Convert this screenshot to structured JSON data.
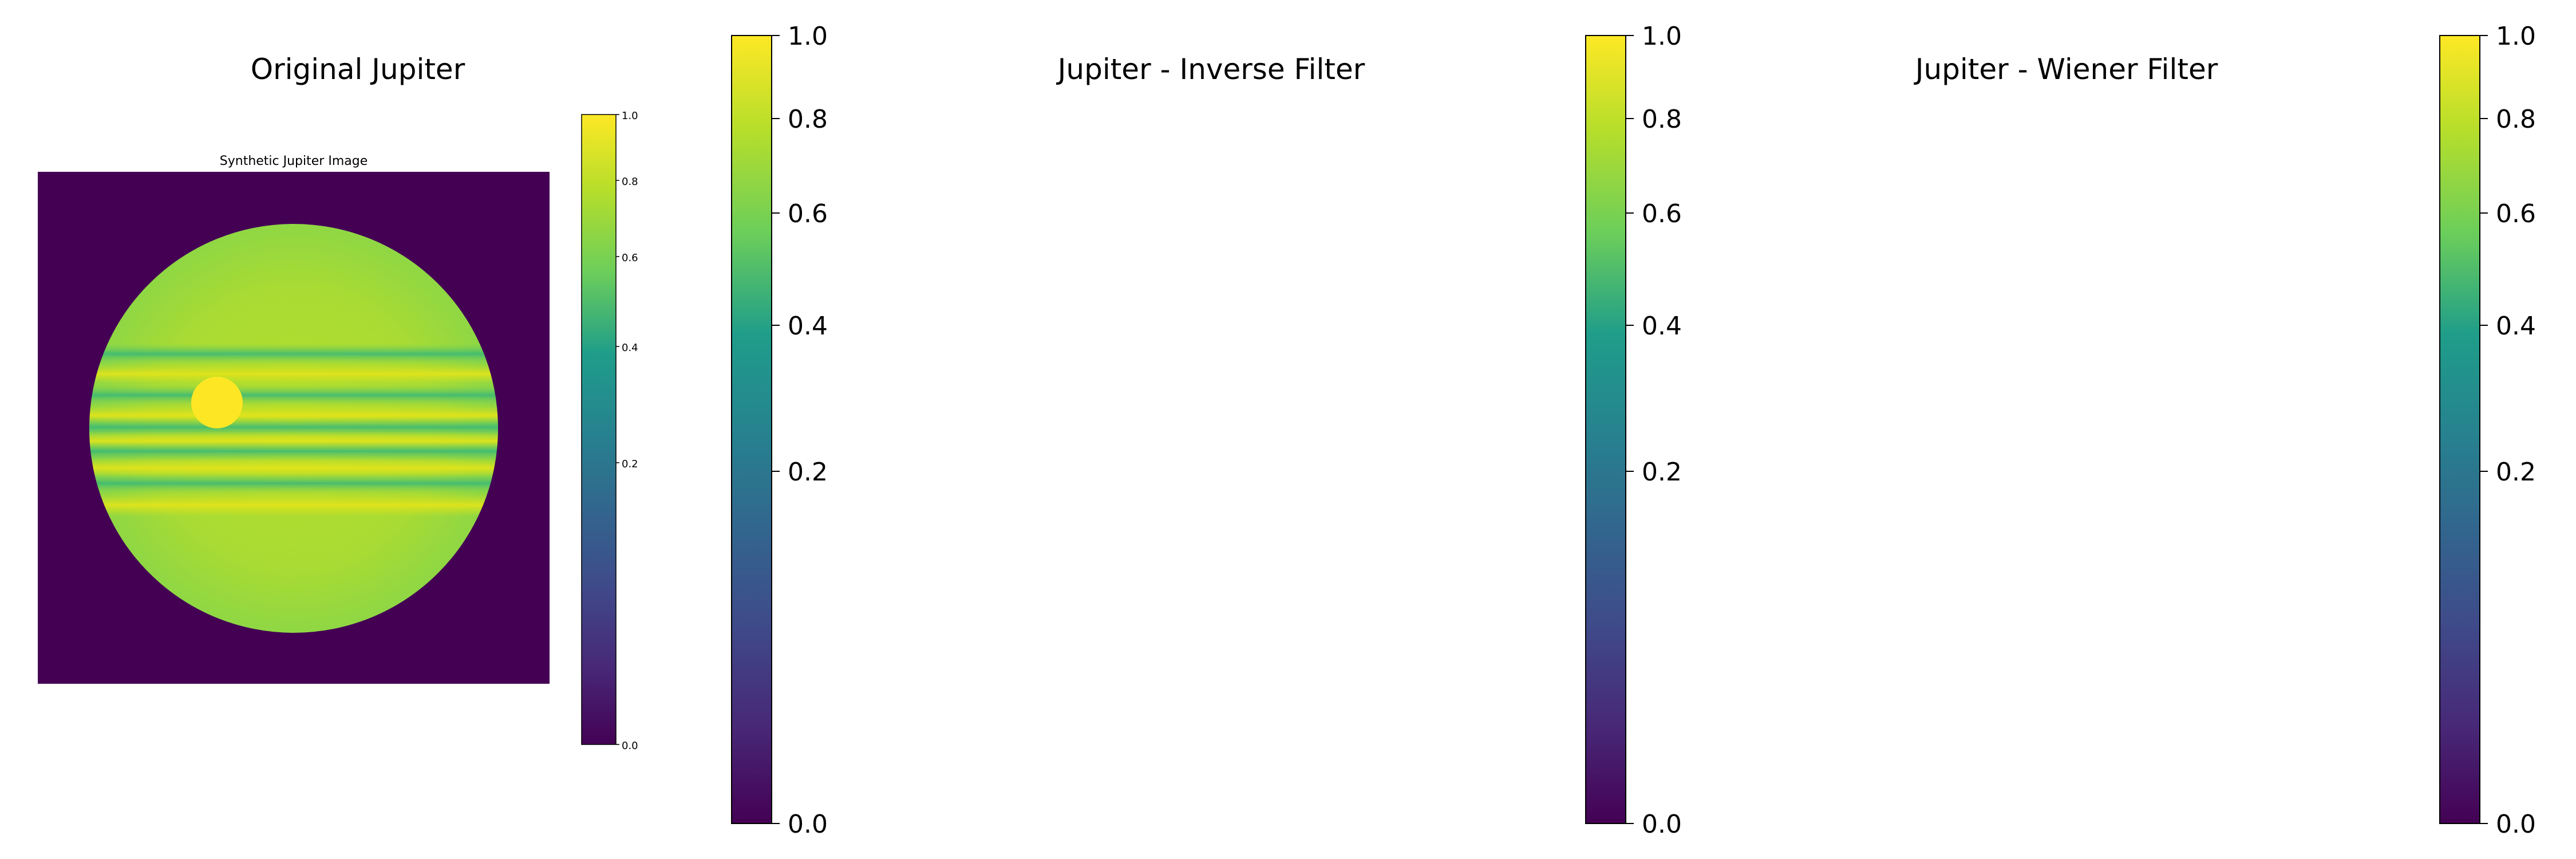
{
  "panels": [
    {
      "title": "Original Jupiter"
    },
    {
      "title": "Jupiter - Inverse Filter"
    },
    {
      "title": "Jupiter - Wiener Filter"
    }
  ],
  "inset": {
    "title": "Synthetic Jupiter Image",
    "colorbar_ticks": [
      "0.0",
      "0.2",
      "0.4",
      "0.6",
      "0.8",
      "1.0"
    ]
  },
  "colormap": {
    "name": "viridis",
    "stops": [
      "#440154",
      "#482777",
      "#3f4a8a",
      "#31678e",
      "#26838f",
      "#1f9d8a",
      "#6cce5a",
      "#b6de2b",
      "#fee825"
    ]
  },
  "chart_data": [
    {
      "type": "heatmap",
      "title": "Original Jupiter",
      "image": {
        "title": "Synthetic Jupiter Image",
        "background_value": 0.0,
        "disk_base_value": 0.78,
        "band_values": [
          0.62,
          0.9,
          0.62,
          0.9,
          0.62,
          0.9,
          0.62
        ],
        "spot_value": 1.0
      },
      "colorbar": {
        "ticks": [
          "0.0",
          "0.2",
          "0.4",
          "0.6",
          "0.8",
          "1.0"
        ],
        "range": [
          0.0,
          1.0
        ],
        "scale": "log-like (tick 0.2 at ~63%, 0.4 at ~79%)"
      }
    },
    {
      "type": "heatmap",
      "title": "Jupiter - Inverse Filter",
      "image": null,
      "colorbar": {
        "ticks": [
          "0.0",
          "0.2",
          "0.4",
          "0.6",
          "0.8",
          "1.0"
        ],
        "range": [
          0.0,
          1.0
        ]
      }
    },
    {
      "type": "heatmap",
      "title": "Jupiter - Wiener Filter",
      "image": null,
      "colorbar": {
        "ticks": [
          "0.0",
          "0.2",
          "0.4",
          "0.6",
          "0.8",
          "1.0"
        ],
        "range": [
          0.0,
          1.0
        ]
      }
    }
  ]
}
